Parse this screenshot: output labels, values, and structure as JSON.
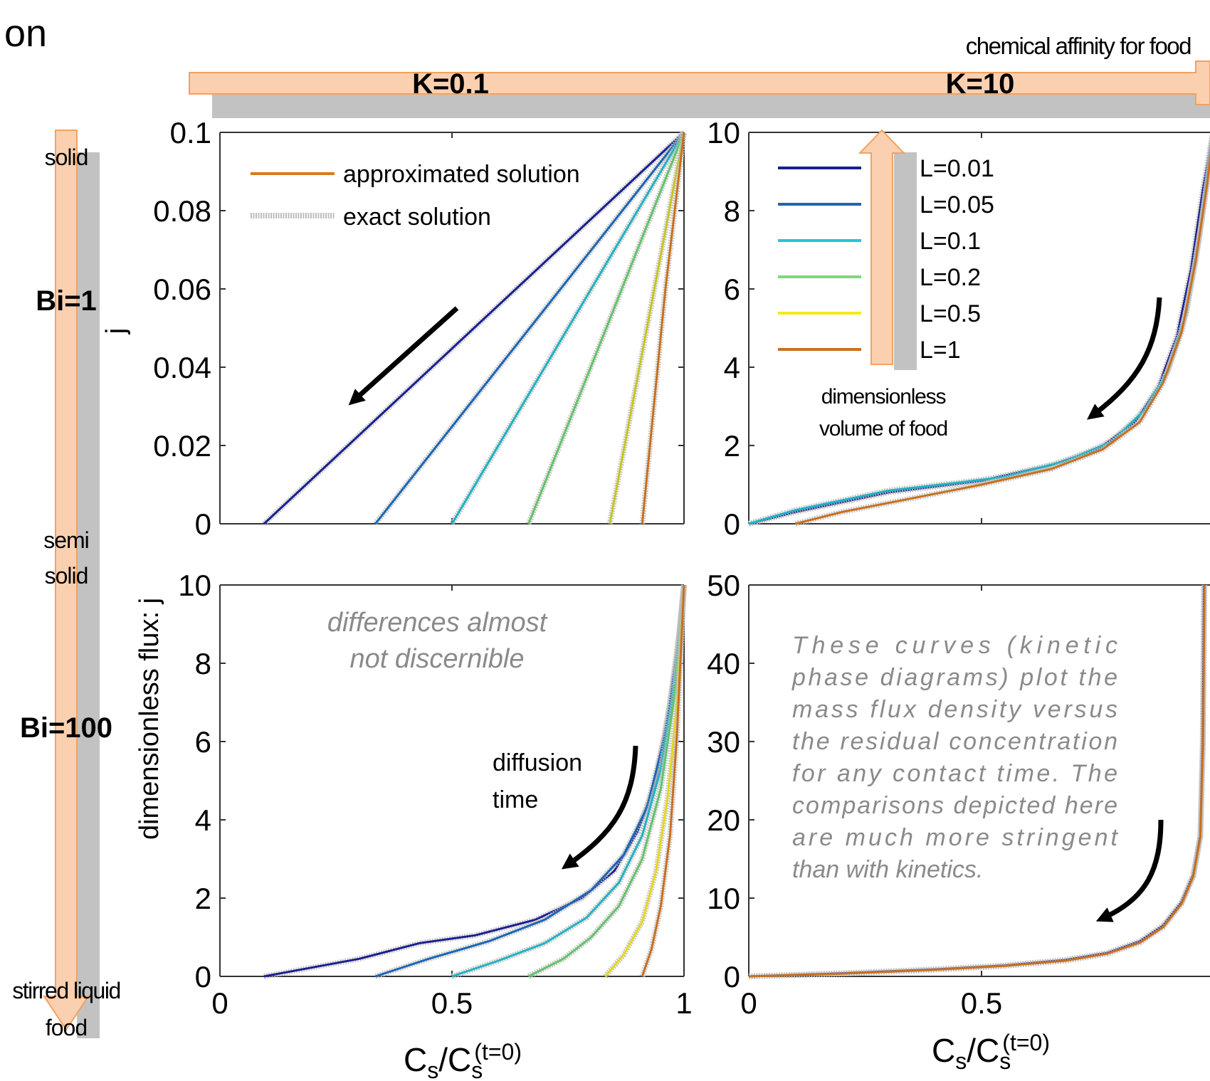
{
  "page": {
    "title_fragment": "on",
    "affinity_label": "chemical affinity for food",
    "k_low": "K=0.1",
    "k_high": "K=10",
    "food_states": [
      "solid",
      "semi",
      "solid",
      "stirred liquid",
      "food"
    ],
    "bi_low": "Bi=1",
    "bi_high": "Bi=100",
    "legend_volume_title_1": "dimensionless",
    "legend_volume_title_2": "volume of food",
    "annotation_diff_1": "differences almost",
    "annotation_diff_2": "not discernible",
    "annotation_time_1": "diffusion",
    "annotation_time_2": "time",
    "note_lines": [
      "These curves (kinetic",
      "phase diagrams) plot the",
      "mass flux density versus",
      "the residual concentration",
      "for any contact time. The",
      "comparisons depicted here",
      "are much more stringent",
      "than with kinetics."
    ],
    "ylabel_top": "j",
    "ylabel_bottom": "dimensionless flux: j",
    "xlabel_main": "C",
    "xlabel_sub": "s",
    "xlabel_sup": "(t=0)",
    "colors": {
      "arrow_fill": "#fbd0b0",
      "arrow_stroke": "#f2a25e",
      "shadow": "#c2c2c2",
      "black_arrow": "#000000",
      "annotation_gray": "#8a8a8a"
    }
  },
  "chart_data": [
    {
      "id": "K0.1_Bi1",
      "type": "line",
      "xlim": [
        0,
        1
      ],
      "ylim": [
        0,
        0.1
      ],
      "xticks": [
        "0",
        "0.5",
        "1"
      ],
      "yticks": [
        "0",
        "0.02",
        "0.04",
        "0.06",
        "0.08",
        "0.1"
      ],
      "legend": [
        {
          "label": "approximated solution",
          "color": "#d97b1f"
        },
        {
          "label": "exact solution",
          "color": "#bdbdbd"
        }
      ],
      "series": [
        {
          "color": "#1a1f8f",
          "points": [
            [
              0.095,
              0
            ],
            [
              1,
              0.1
            ]
          ]
        },
        {
          "color": "#1b66b5",
          "points": [
            [
              0.335,
              0
            ],
            [
              1,
              0.1
            ]
          ]
        },
        {
          "color": "#1fb3c4",
          "points": [
            [
              0.5,
              0
            ],
            [
              1,
              0.1
            ]
          ]
        },
        {
          "color": "#63c46a",
          "points": [
            [
              0.665,
              0
            ],
            [
              1,
              0.1
            ]
          ]
        },
        {
          "color": "#c7c622",
          "points": [
            [
              0.84,
              0
            ],
            [
              1,
              0.1
            ]
          ]
        },
        {
          "color": "#c9701f",
          "points": [
            [
              0.91,
              0
            ],
            [
              0.935,
              0.03
            ],
            [
              0.96,
              0.06
            ],
            [
              1,
              0.1
            ]
          ]
        }
      ]
    },
    {
      "id": "K10_Bi1",
      "type": "line",
      "xlim": [
        0,
        1
      ],
      "ylim": [
        0,
        10
      ],
      "xticks": [
        "0",
        "0.5",
        ""
      ],
      "yticks": [
        "0",
        "2",
        "4",
        "6",
        "8",
        "10"
      ],
      "legend": [
        {
          "label": "L=0.01",
          "color": "#1a1f8f"
        },
        {
          "label": "L=0.05",
          "color": "#1b66b5"
        },
        {
          "label": "L=0.1",
          "color": "#22c6d8"
        },
        {
          "label": "L=0.2",
          "color": "#7bd97e"
        },
        {
          "label": "L=0.5",
          "color": "#f2ea1c"
        },
        {
          "label": "L=1",
          "color": "#c9701f"
        }
      ],
      "series": [
        {
          "color": "#1a1f8f",
          "points": [
            [
              0,
              0
            ],
            [
              0.1,
              0.3
            ],
            [
              0.3,
              0.8
            ],
            [
              0.5,
              1.1
            ],
            [
              0.65,
              1.5
            ],
            [
              0.75,
              1.9
            ],
            [
              0.83,
              2.6
            ],
            [
              0.88,
              3.5
            ],
            [
              0.92,
              4.8
            ],
            [
              0.95,
              6.5
            ],
            [
              0.975,
              8.5
            ],
            [
              1,
              10.2
            ]
          ]
        },
        {
          "color": "#1fb3c4",
          "points": [
            [
              0,
              0
            ],
            [
              0.1,
              0.35
            ],
            [
              0.3,
              0.85
            ],
            [
              0.45,
              1.05
            ],
            [
              0.55,
              1.2
            ],
            [
              0.68,
              1.6
            ],
            [
              0.78,
              2.1
            ],
            [
              0.85,
              2.9
            ],
            [
              0.9,
              3.9
            ],
            [
              0.94,
              5.4
            ],
            [
              0.97,
              7.5
            ],
            [
              1,
              10.2
            ]
          ]
        },
        {
          "color": "#c9701f",
          "points": [
            [
              0.1,
              0
            ],
            [
              0.2,
              0.3
            ],
            [
              0.35,
              0.65
            ],
            [
              0.5,
              1.0
            ],
            [
              0.65,
              1.4
            ],
            [
              0.76,
              1.9
            ],
            [
              0.84,
              2.6
            ],
            [
              0.89,
              3.6
            ],
            [
              0.93,
              4.9
            ],
            [
              0.96,
              6.7
            ],
            [
              0.985,
              8.7
            ],
            [
              1,
              10.2
            ]
          ]
        }
      ]
    },
    {
      "id": "K0.1_Bi100",
      "type": "line",
      "xlim": [
        0,
        1
      ],
      "ylim": [
        0,
        10
      ],
      "xticks": [
        "0",
        "0.5",
        "1"
      ],
      "yticks": [
        "0",
        "2",
        "4",
        "6",
        "8",
        "10"
      ],
      "series": [
        {
          "color": "#1a1f8f",
          "points": [
            [
              0.095,
              0
            ],
            [
              0.3,
              0.45
            ],
            [
              0.43,
              0.85
            ],
            [
              0.55,
              1.05
            ],
            [
              0.68,
              1.45
            ],
            [
              0.78,
              2.0
            ],
            [
              0.85,
              2.7
            ],
            [
              0.9,
              3.7
            ],
            [
              0.94,
              5.0
            ],
            [
              0.97,
              7.0
            ],
            [
              0.99,
              8.8
            ],
            [
              1,
              10
            ]
          ]
        },
        {
          "color": "#1b66b5",
          "points": [
            [
              0.335,
              0
            ],
            [
              0.45,
              0.45
            ],
            [
              0.58,
              0.9
            ],
            [
              0.7,
              1.45
            ],
            [
              0.8,
              2.2
            ],
            [
              0.87,
              3.1
            ],
            [
              0.92,
              4.3
            ],
            [
              0.96,
              6.2
            ],
            [
              0.985,
              8.2
            ],
            [
              1,
              10
            ]
          ]
        },
        {
          "color": "#1fb3c4",
          "points": [
            [
              0.5,
              0
            ],
            [
              0.6,
              0.4
            ],
            [
              0.7,
              0.85
            ],
            [
              0.79,
              1.5
            ],
            [
              0.86,
              2.4
            ],
            [
              0.91,
              3.6
            ],
            [
              0.95,
              5.3
            ],
            [
              0.98,
              7.5
            ],
            [
              1,
              10
            ]
          ]
        },
        {
          "color": "#63c46a",
          "points": [
            [
              0.665,
              0
            ],
            [
              0.74,
              0.45
            ],
            [
              0.8,
              1.0
            ],
            [
              0.86,
              1.8
            ],
            [
              0.91,
              3.0
            ],
            [
              0.95,
              4.8
            ],
            [
              0.98,
              7.2
            ],
            [
              1,
              10
            ]
          ]
        },
        {
          "color": "#e5d91c",
          "points": [
            [
              0.83,
              0
            ],
            [
              0.87,
              0.55
            ],
            [
              0.91,
              1.4
            ],
            [
              0.94,
              2.7
            ],
            [
              0.965,
              4.6
            ],
            [
              0.985,
              7.0
            ],
            [
              1,
              10
            ]
          ]
        },
        {
          "color": "#c9701f",
          "points": [
            [
              0.91,
              0
            ],
            [
              0.93,
              0.7
            ],
            [
              0.95,
              1.8
            ],
            [
              0.97,
              3.6
            ],
            [
              0.985,
              6.2
            ],
            [
              1,
              10
            ]
          ]
        }
      ]
    },
    {
      "id": "K10_Bi100",
      "type": "line",
      "xlim": [
        0,
        1
      ],
      "ylim": [
        0,
        50
      ],
      "xticks": [
        "0",
        "0.5",
        ""
      ],
      "yticks": [
        "0",
        "10",
        "20",
        "30",
        "40",
        "50"
      ],
      "series": [
        {
          "color": "#1a1f8f",
          "points": [
            [
              0,
              0
            ],
            [
              0.2,
              0.4
            ],
            [
              0.4,
              0.9
            ],
            [
              0.55,
              1.4
            ],
            [
              0.68,
              2.1
            ],
            [
              0.77,
              3.0
            ],
            [
              0.84,
              4.5
            ],
            [
              0.89,
              6.5
            ],
            [
              0.93,
              9.5
            ],
            [
              0.955,
              13
            ],
            [
              0.97,
              18
            ],
            [
              0.975,
              30
            ],
            [
              0.978,
              50
            ]
          ]
        },
        {
          "color": "#c9701f",
          "points": [
            [
              0,
              0
            ],
            [
              0.2,
              0.35
            ],
            [
              0.4,
              0.85
            ],
            [
              0.55,
              1.35
            ],
            [
              0.68,
              2.0
            ],
            [
              0.77,
              2.9
            ],
            [
              0.84,
              4.3
            ],
            [
              0.89,
              6.3
            ],
            [
              0.93,
              9.3
            ],
            [
              0.955,
              12.8
            ],
            [
              0.97,
              17.8
            ],
            [
              0.976,
              30
            ],
            [
              0.979,
              50
            ]
          ]
        }
      ]
    }
  ]
}
